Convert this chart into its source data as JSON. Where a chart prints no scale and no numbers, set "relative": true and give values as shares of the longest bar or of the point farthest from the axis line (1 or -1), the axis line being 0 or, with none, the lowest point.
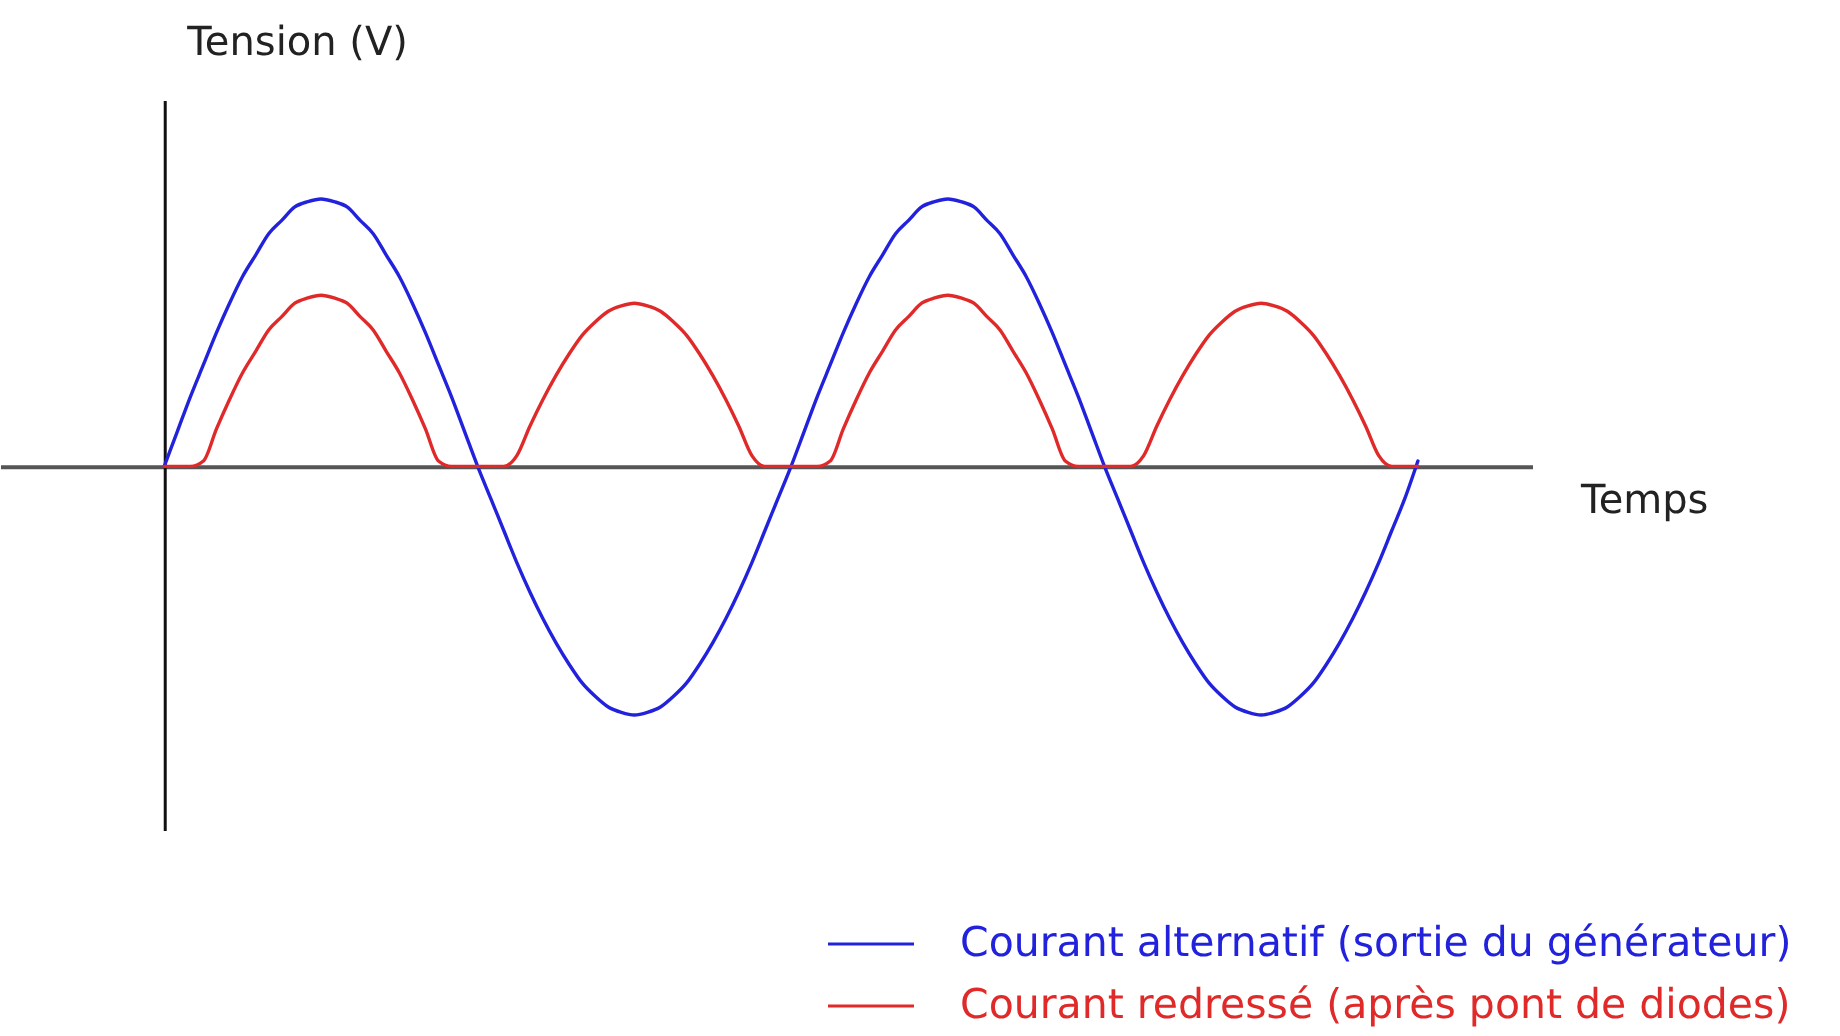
{
  "chart_data": {
    "type": "line",
    "relative": true,
    "xlabel": "Temps",
    "ylabel": "Tension (V)",
    "legend": "bottom right",
    "categories": [
      null,
      null,
      null,
      null,
      null,
      null,
      null,
      null,
      null,
      null,
      null,
      null,
      null,
      null,
      null,
      null,
      null,
      null,
      null,
      null,
      null,
      null,
      null,
      null,
      null,
      null,
      null,
      null,
      null,
      null,
      null,
      null,
      null,
      null,
      null,
      null,
      null,
      null,
      null,
      null,
      null,
      null,
      null,
      null,
      null,
      null,
      null,
      null,
      null,
      null,
      null,
      null,
      null,
      null,
      null,
      null,
      null,
      null,
      null,
      null,
      null,
      null,
      null,
      null,
      null,
      null,
      null,
      null,
      null,
      null,
      null,
      null,
      null,
      null,
      null,
      null,
      null,
      null,
      null,
      null,
      null,
      null,
      null,
      null,
      null,
      null,
      null,
      null,
      null,
      null,
      null,
      null,
      null,
      null,
      null,
      null,
      null
    ],
    "series": [
      {
        "name": "Courant alternatif (sortie du générateur)",
        "color": "#2222dd",
        "values": [
          0,
          0.13,
          0.26,
          0.38,
          0.5,
          0.61,
          0.71,
          0.79,
          0.87,
          0.92,
          0.97,
          0.99,
          1,
          0.99,
          0.97,
          0.92,
          0.87,
          0.79,
          0.71,
          0.61,
          0.5,
          0.38,
          0.26,
          0.13,
          0,
          -0.12,
          -0.24,
          -0.36,
          -0.47,
          -0.57,
          -0.66,
          -0.74,
          -0.81,
          -0.86,
          -0.9,
          -0.92,
          -0.93,
          -0.92,
          -0.9,
          -0.86,
          -0.81,
          -0.74,
          -0.66,
          -0.57,
          -0.47,
          -0.36,
          -0.24,
          -0.12,
          0,
          0.13,
          0.26,
          0.38,
          0.5,
          0.61,
          0.71,
          0.79,
          0.87,
          0.92,
          0.97,
          0.99,
          1,
          0.99,
          0.97,
          0.92,
          0.87,
          0.79,
          0.71,
          0.61,
          0.5,
          0.38,
          0.26,
          0.13,
          0,
          -0.12,
          -0.24,
          -0.36,
          -0.47,
          -0.57,
          -0.66,
          -0.74,
          -0.81,
          -0.86,
          -0.9,
          -0.92,
          -0.93,
          -0.92,
          -0.9,
          -0.86,
          -0.81,
          -0.74,
          -0.66,
          -0.57,
          -0.47,
          -0.36,
          -0.24,
          -0.12,
          0.02
        ]
      },
      {
        "name": "Courant redressé (après pont de diodes)",
        "color": "#e02a2a",
        "values": [
          0,
          0,
          0,
          0.02,
          0.14,
          0.25,
          0.35,
          0.43,
          0.51,
          0.56,
          0.61,
          0.63,
          0.64,
          0.63,
          0.61,
          0.56,
          0.51,
          0.43,
          0.35,
          0.25,
          0.14,
          0.02,
          0,
          0,
          0,
          0,
          0,
          0.04,
          0.15,
          0.25,
          0.34,
          0.42,
          0.49,
          0.54,
          0.58,
          0.6,
          0.61,
          0.6,
          0.58,
          0.54,
          0.49,
          0.42,
          0.34,
          0.25,
          0.15,
          0.04,
          0,
          0,
          0,
          0,
          0,
          0.02,
          0.14,
          0.25,
          0.35,
          0.43,
          0.51,
          0.56,
          0.61,
          0.63,
          0.64,
          0.63,
          0.61,
          0.56,
          0.51,
          0.43,
          0.35,
          0.25,
          0.14,
          0.02,
          0,
          0,
          0,
          0,
          0,
          0.04,
          0.15,
          0.25,
          0.34,
          0.42,
          0.49,
          0.54,
          0.58,
          0.6,
          0.61,
          0.6,
          0.58,
          0.54,
          0.49,
          0.42,
          0.34,
          0.25,
          0.15,
          0.04,
          0,
          0,
          0
        ]
      }
    ]
  }
}
